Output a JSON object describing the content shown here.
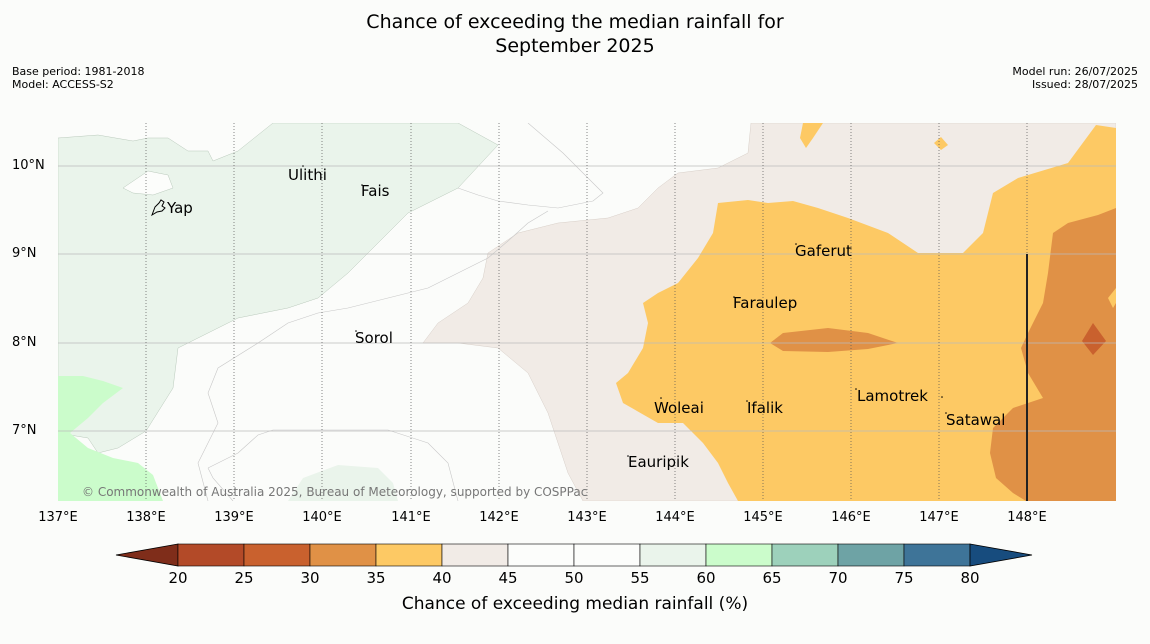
{
  "title": {
    "line1": "Chance of exceeding the median rainfall for",
    "line2": "September 2025"
  },
  "meta": {
    "base_period": "Base period: 1981-2018",
    "model": "Model: ACCESS-S2",
    "model_run": "Model run: 26/07/2025",
    "issued": "Issued: 28/07/2025"
  },
  "axes": {
    "lat_labels": [
      "10°N",
      "9°N",
      "8°N",
      "7°N"
    ],
    "lon_labels": [
      "137°E",
      "138°E",
      "139°E",
      "140°E",
      "141°E",
      "142°E",
      "143°E",
      "144°E",
      "145°E",
      "146°E",
      "147°E",
      "148°E"
    ]
  },
  "places": {
    "ulithi": "Ulithi",
    "fais": "Fais",
    "yap": "Yap",
    "gaferut": "Gaferut",
    "faraulep": "Faraulep",
    "sorol": "Sorol",
    "lamotrek": "Lamotrek",
    "woleai": "Woleai",
    "ifalik": "Ifalik",
    "satawal": "Satawal",
    "eauripik": "Eauripik"
  },
  "copyright": "© Commonwealth of Australia 2025, Bureau of Meteorology, supported by COSPPac",
  "colorbar": {
    "ticks": [
      "20",
      "25",
      "30",
      "35",
      "40",
      "45",
      "50",
      "55",
      "60",
      "65",
      "70",
      "75",
      "80"
    ],
    "label": "Chance of exceeding median rainfall (%)",
    "colors": [
      "#7f2d1a",
      "#b34a28",
      "#c9612e",
      "#e09146",
      "#fdc964",
      "#f1ebe6",
      "#fcfdfb",
      "#fcfdfb",
      "#eaf4eb",
      "#cbfccb",
      "#9dd1bb",
      "#6ea3a5",
      "#3e7498",
      "#174c7e"
    ]
  }
}
